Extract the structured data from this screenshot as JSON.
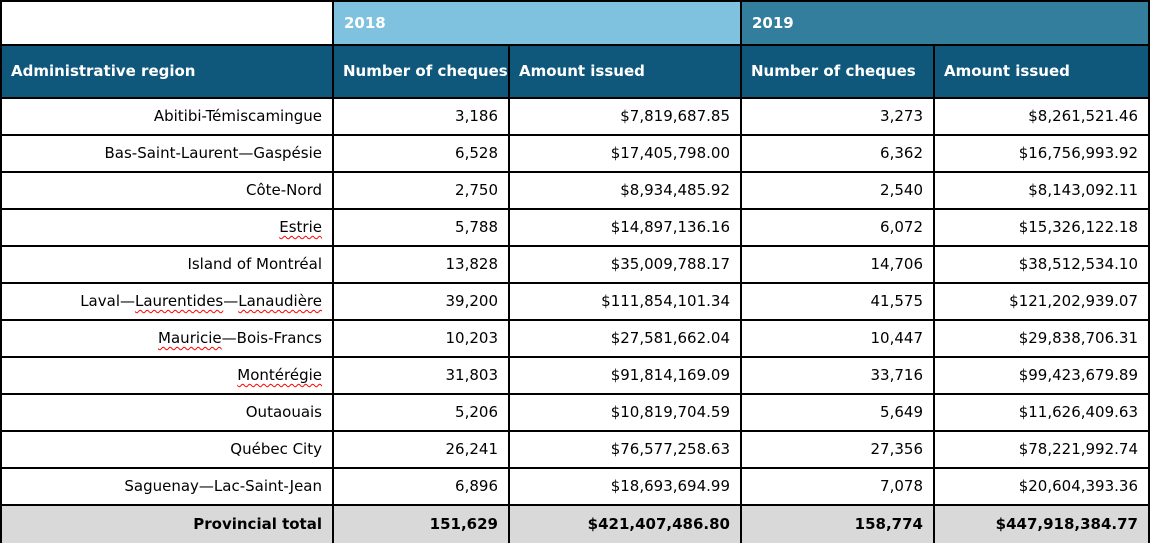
{
  "colors": {
    "year_2018_bg": "#7FC2E0",
    "year_2019_bg": "#337E9D",
    "column_header_bg": "#0F587B",
    "total_row_bg": "#D9D9D9",
    "header_text": "#FFFFFF",
    "spellcheck_underline": "#FF0000"
  },
  "header": {
    "region_label": "Administrative region",
    "years": [
      {
        "label": "2018"
      },
      {
        "label": "2019"
      }
    ],
    "cheques_label": "Number of cheques",
    "amount_label": "Amount issued"
  },
  "rows": [
    {
      "region": [
        {
          "t": "Abitibi-Témiscamingue",
          "sp": false
        }
      ],
      "cheques_2018": "3,186",
      "amount_2018": "$7,819,687.85",
      "cheques_2019": "3,273",
      "amount_2019": "$8,261,521.46"
    },
    {
      "region": [
        {
          "t": "Bas-Saint-Laurent—Gaspésie",
          "sp": false
        }
      ],
      "cheques_2018": "6,528",
      "amount_2018": "$17,405,798.00",
      "cheques_2019": "6,362",
      "amount_2019": "$16,756,993.92"
    },
    {
      "region": [
        {
          "t": "Côte-Nord",
          "sp": false
        }
      ],
      "cheques_2018": "2,750",
      "amount_2018": "$8,934,485.92",
      "cheques_2019": "2,540",
      "amount_2019": "$8,143,092.11"
    },
    {
      "region": [
        {
          "t": "Estrie",
          "sp": true
        }
      ],
      "cheques_2018": "5,788",
      "amount_2018": "$14,897,136.16",
      "cheques_2019": "6,072",
      "amount_2019": "$15,326,122.18"
    },
    {
      "region": [
        {
          "t": "Island of Montréal",
          "sp": false
        }
      ],
      "cheques_2018": "13,828",
      "amount_2018": "$35,009,788.17",
      "cheques_2019": "14,706",
      "amount_2019": "$38,512,534.10"
    },
    {
      "region": [
        {
          "t": "Laval—",
          "sp": false
        },
        {
          "t": "Laurentides",
          "sp": true
        },
        {
          "t": "—",
          "sp": false
        },
        {
          "t": "Lanaudière",
          "sp": true
        }
      ],
      "cheques_2018": "39,200",
      "amount_2018": "$111,854,101.34",
      "cheques_2019": "41,575",
      "amount_2019": "$121,202,939.07"
    },
    {
      "region": [
        {
          "t": "Mauricie",
          "sp": true
        },
        {
          "t": "—Bois-Francs",
          "sp": false
        }
      ],
      "cheques_2018": "10,203",
      "amount_2018": "$27,581,662.04",
      "cheques_2019": "10,447",
      "amount_2019": "$29,838,706.31"
    },
    {
      "region": [
        {
          "t": "Montérégie",
          "sp": true
        }
      ],
      "cheques_2018": "31,803",
      "amount_2018": "$91,814,169.09",
      "cheques_2019": "33,716",
      "amount_2019": "$99,423,679.89"
    },
    {
      "region": [
        {
          "t": "Outaouais",
          "sp": false
        }
      ],
      "cheques_2018": "5,206",
      "amount_2018": "$10,819,704.59",
      "cheques_2019": "5,649",
      "amount_2019": "$11,626,409.63"
    },
    {
      "region": [
        {
          "t": "Québec City",
          "sp": false
        }
      ],
      "cheques_2018": "26,241",
      "amount_2018": "$76,577,258.63",
      "cheques_2019": "27,356",
      "amount_2019": "$78,221,992.74"
    },
    {
      "region": [
        {
          "t": "Saguenay—Lac-Saint-Jean",
          "sp": false
        }
      ],
      "cheques_2018": "6,896",
      "amount_2018": "$18,693,694.99",
      "cheques_2019": "7,078",
      "amount_2019": "$20,604,393.36"
    }
  ],
  "total_row": {
    "label": "Provincial total",
    "cheques_2018": "151,629",
    "amount_2018": "$421,407,486.80",
    "cheques_2019": "158,774",
    "amount_2019": "$447,918,384.77"
  }
}
